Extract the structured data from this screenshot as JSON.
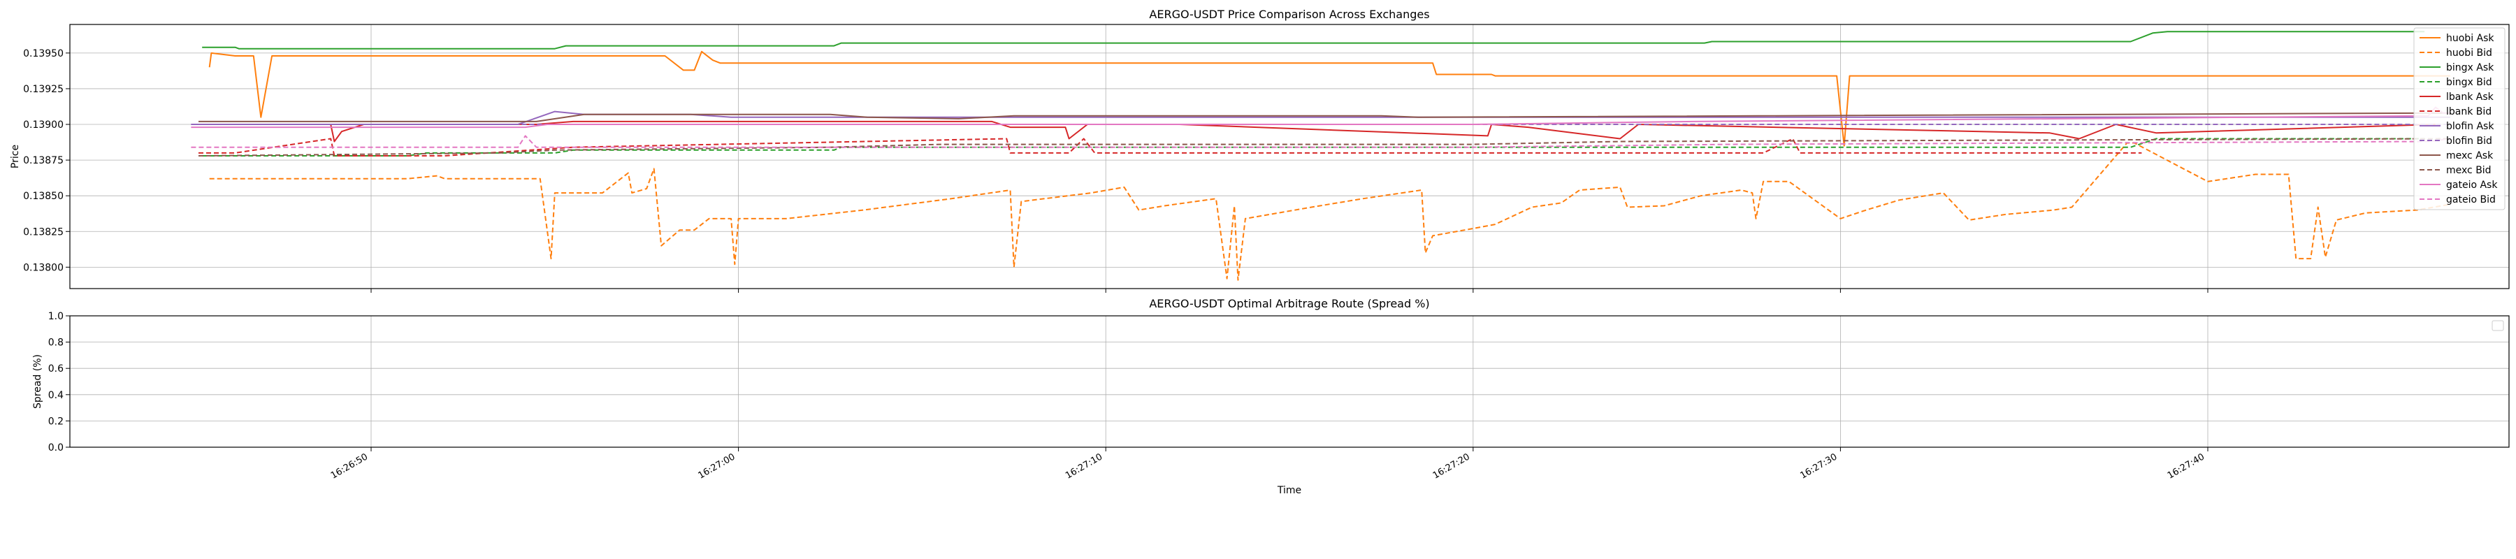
{
  "chart_data": [
    {
      "type": "line",
      "title": "AERGO-USDT Price Comparison Across Exchanges",
      "xlabel": "",
      "ylabel": "Price",
      "ylim": [
        0.13785,
        0.1397
      ],
      "xlim": [
        "16:26:41.8",
        "16:27:48.2"
      ],
      "grid": true,
      "legend_position": "upper-right",
      "y_ticks": [
        "0.13800",
        "0.13825",
        "0.13850",
        "0.13875",
        "0.13900",
        "0.13925",
        "0.13950"
      ],
      "y_tick_values": [
        0.138,
        0.13825,
        0.1385,
        0.13875,
        0.139,
        0.13925,
        0.1395
      ],
      "x_ticks": [
        "16:26:50",
        "16:27:00",
        "16:27:10",
        "16:27:20",
        "16:27:30",
        "16:27:40"
      ],
      "x_tick_values": [
        "16:26:50",
        "16:27:00",
        "16:27:10",
        "16:27:20",
        "16:27:30",
        "16:27:40"
      ],
      "series": [
        {
          "name": "huobi Ask",
          "color": "#ff7f0e",
          "dash": "solid",
          "points": [
            [
              "16:26:45.6",
              0.1394
            ],
            [
              "16:26:45.65",
              0.1395
            ],
            [
              "16:26:46.3",
              0.13948
            ],
            [
              "16:26:46.8",
              0.13948
            ],
            [
              "16:26:47.0",
              0.13905
            ],
            [
              "16:26:47.3",
              0.13948
            ],
            [
              "16:26:58.0",
              0.13948
            ],
            [
              "16:26:58.5",
              0.13938
            ],
            [
              "16:26:58.8",
              0.13938
            ],
            [
              "16:26:59.0",
              0.13951
            ],
            [
              "16:26:59.3",
              0.13945
            ],
            [
              "16:26:59.5",
              0.13943
            ],
            [
              "16:27:18.9",
              0.13943
            ],
            [
              "16:27:19.0",
              0.13935
            ],
            [
              "16:27:20.5",
              0.13935
            ],
            [
              "16:27:20.6",
              0.13934
            ],
            [
              "16:27:29.9",
              0.13934
            ],
            [
              "16:27:30.1",
              0.13885
            ],
            [
              "16:27:30.25",
              0.13934
            ],
            [
              "16:27:46.6",
              0.13934
            ]
          ]
        },
        {
          "name": "huobi Bid",
          "color": "#ff7f0e",
          "dash": "dashed",
          "points": [
            [
              "16:26:45.6",
              0.13862
            ],
            [
              "16:26:51.0",
              0.13862
            ],
            [
              "16:26:51.8",
              0.13864
            ],
            [
              "16:26:52.0",
              0.13862
            ],
            [
              "16:26:54.6",
              0.13862
            ],
            [
              "16:26:54.9",
              0.13806
            ],
            [
              "16:26:55.0",
              0.13852
            ],
            [
              "16:26:56.3",
              0.13852
            ],
            [
              "16:26:57.0",
              0.13866
            ],
            [
              "16:26:57.1",
              0.13852
            ],
            [
              "16:26:57.5",
              0.13855
            ],
            [
              "16:26:57.7",
              0.13869
            ],
            [
              "16:26:57.9",
              0.13815
            ],
            [
              "16:26:58.4",
              0.13826
            ],
            [
              "16:26:58.8",
              0.13826
            ],
            [
              "16:26:59.2",
              0.13834
            ],
            [
              "16:26:59.8",
              0.13834
            ],
            [
              "16:26:59.9",
              0.13802
            ],
            [
              "16:27:00.0",
              0.13834
            ],
            [
              "16:27:01.3",
              0.13834
            ],
            [
              "16:27:03.4",
              0.1384
            ],
            [
              "16:27:05.8",
              0.13848
            ],
            [
              "16:27:07.4",
              0.13854
            ],
            [
              "16:27:07.5",
              0.138
            ],
            [
              "16:27:07.7",
              0.13846
            ],
            [
              "16:27:09.6",
              0.13852
            ],
            [
              "16:27:10.5",
              0.13856
            ],
            [
              "16:27:10.9",
              0.1384
            ],
            [
              "16:27:11.6",
              0.13843
            ],
            [
              "16:27:13.0",
              0.13848
            ],
            [
              "16:27:13.3",
              0.13792
            ],
            [
              "16:27:13.5",
              0.13843
            ],
            [
              "16:27:13.6",
              0.13791
            ],
            [
              "16:27:13.8",
              0.13834
            ],
            [
              "16:27:15.6",
              0.13842
            ],
            [
              "16:27:17.0",
              0.13848
            ],
            [
              "16:27:18.6",
              0.13854
            ],
            [
              "16:27:18.7",
              0.1381
            ],
            [
              "16:27:18.9",
              0.13822
            ],
            [
              "16:27:20.2",
              0.13828
            ],
            [
              "16:27:20.6",
              0.1383
            ],
            [
              "16:27:21.6",
              0.13842
            ],
            [
              "16:27:22.4",
              0.13845
            ],
            [
              "16:27:22.9",
              0.13854
            ],
            [
              "16:27:24.0",
              0.13856
            ],
            [
              "16:27:24.2",
              0.13842
            ],
            [
              "16:27:25.2",
              0.13843
            ],
            [
              "16:27:26.2",
              0.1385
            ],
            [
              "16:27:27.3",
              0.13854
            ],
            [
              "16:27:27.6",
              0.13852
            ],
            [
              "16:27:27.7",
              0.13834
            ],
            [
              "16:27:27.9",
              0.1386
            ],
            [
              "16:27:28.6",
              0.1386
            ],
            [
              "16:27:30.0",
              0.13834
            ],
            [
              "16:27:30.7",
              0.1384
            ],
            [
              "16:27:31.6",
              0.13847
            ],
            [
              "16:27:32.8",
              0.13852
            ],
            [
              "16:27:33.5",
              0.13833
            ],
            [
              "16:27:34.5",
              0.13837
            ],
            [
              "16:27:35.8",
              0.1384
            ],
            [
              "16:27:36.3",
              0.13842
            ],
            [
              "16:27:37.8",
              0.13887
            ],
            [
              "16:27:38.0",
              0.13887
            ],
            [
              "16:27:40.0",
              0.1386
            ],
            [
              "16:27:41.3",
              0.13865
            ],
            [
              "16:27:42.2",
              0.13865
            ],
            [
              "16:27:42.4",
              0.13806
            ],
            [
              "16:27:42.8",
              0.13806
            ],
            [
              "16:27:43.0",
              0.13842
            ],
            [
              "16:27:43.2",
              0.13807
            ],
            [
              "16:27:43.5",
              0.13833
            ],
            [
              "16:27:44.3",
              0.13838
            ],
            [
              "16:27:45.7",
              0.1384
            ],
            [
              "16:27:46.6",
              0.13844
            ]
          ]
        },
        {
          "name": "bingx Ask",
          "color": "#2ca02c",
          "dash": "solid",
          "points": [
            [
              "16:26:45.4",
              0.13954
            ],
            [
              "16:26:46.3",
              0.13954
            ],
            [
              "16:26:46.4",
              0.13953
            ],
            [
              "16:26:55.0",
              0.13953
            ],
            [
              "16:26:55.3",
              0.13955
            ],
            [
              "16:27:02.6",
              0.13955
            ],
            [
              "16:27:02.8",
              0.13957
            ],
            [
              "16:27:26.3",
              0.13957
            ],
            [
              "16:27:26.5",
              0.13958
            ],
            [
              "16:27:37.9",
              0.13958
            ],
            [
              "16:27:38.5",
              0.13964
            ],
            [
              "16:27:38.9",
              0.13965
            ],
            [
              "16:27:45.9",
              0.13965
            ]
          ]
        },
        {
          "name": "bingx Bid",
          "color": "#2ca02c",
          "dash": "dashed",
          "points": [
            [
              "16:26:45.4",
              0.13878
            ],
            [
              "16:26:51.0",
              0.13878
            ],
            [
              "16:26:51.5",
              0.1388
            ],
            [
              "16:26:55.0",
              0.1388
            ],
            [
              "16:26:55.5",
              0.13882
            ],
            [
              "16:27:02.6",
              0.13882
            ],
            [
              "16:27:02.8",
              0.13884
            ],
            [
              "16:27:20.6",
              0.13884
            ],
            [
              "16:27:20.8",
              0.13884
            ],
            [
              "16:27:37.9",
              0.13884
            ],
            [
              "16:27:38.6",
              0.1389
            ],
            [
              "16:27:45.9",
              0.1389
            ]
          ]
        },
        {
          "name": "lbank Ask",
          "color": "#d62728",
          "dash": "solid",
          "points": [
            [
              "16:26:45.3",
              0.139
            ],
            [
              "16:26:48.9",
              0.139
            ],
            [
              "16:26:49.0",
              0.13888
            ],
            [
              "16:26:49.2",
              0.13895
            ],
            [
              "16:26:49.8",
              0.139
            ],
            [
              "16:26:54.5",
              0.139
            ],
            [
              "16:26:55.5",
              0.13902
            ],
            [
              "16:26:57.0",
              0.13902
            ],
            [
              "16:27:06.9",
              0.13902
            ],
            [
              "16:27:07.4",
              0.13898
            ],
            [
              "16:27:08.9",
              0.13898
            ],
            [
              "16:27:09.0",
              0.1389
            ],
            [
              "16:27:09.5",
              0.139
            ],
            [
              "16:27:12.0",
              0.139
            ],
            [
              "16:27:20.4",
              0.13892
            ],
            [
              "16:27:20.5",
              0.139
            ],
            [
              "16:27:21.5",
              0.13898
            ],
            [
              "16:27:24.0",
              0.1389
            ],
            [
              "16:27:24.5",
              0.139
            ],
            [
              "16:27:35.7",
              0.13894
            ],
            [
              "16:27:36.5",
              0.1389
            ],
            [
              "16:27:37.5",
              0.139
            ],
            [
              "16:27:38.6",
              0.13894
            ],
            [
              "16:27:46.2",
              0.139
            ]
          ]
        },
        {
          "name": "lbank Bid",
          "color": "#d62728",
          "dash": "dashed",
          "points": [
            [
              "16:26:45.3",
              0.1388
            ],
            [
              "16:26:46.3",
              0.1388
            ],
            [
              "16:26:48.9",
              0.1389
            ],
            [
              "16:26:49.0",
              0.13878
            ],
            [
              "16:26:52.0",
              0.13878
            ],
            [
              "16:26:55.5",
              0.13884
            ],
            [
              "16:27:07.3",
              0.1389
            ],
            [
              "16:27:07.4",
              0.1388
            ],
            [
              "16:27:09.0",
              0.1388
            ],
            [
              "16:27:09.4",
              0.1389
            ],
            [
              "16:27:09.7",
              0.1388
            ],
            [
              "16:27:27.9",
              0.1388
            ],
            [
              "16:27:28.7",
              0.1389
            ],
            [
              "16:27:28.9",
              0.1388
            ],
            [
              "16:27:38.2",
              0.1388
            ]
          ]
        },
        {
          "name": "blofin Ask",
          "color": "#9467bd",
          "dash": "solid",
          "points": [
            [
              "16:26:45.1",
              0.139
            ],
            [
              "16:26:54.0",
              0.139
            ],
            [
              "16:26:55.0",
              0.13909
            ],
            [
              "16:26:55.8",
              0.13907
            ],
            [
              "16:26:58.7",
              0.13907
            ],
            [
              "16:26:59.8",
              0.13905
            ],
            [
              "16:27:20.6",
              0.13905
            ],
            [
              "16:27:46.6",
              0.13905
            ]
          ]
        },
        {
          "name": "blofin Bid",
          "color": "#9467bd",
          "dash": "dashed",
          "points": [
            [
              "16:26:45.1",
              0.139
            ],
            [
              "16:26:59.8",
              0.139
            ],
            [
              "16:27:20.7",
              0.139
            ],
            [
              "16:27:46.6",
              0.139
            ]
          ]
        },
        {
          "name": "mexc Ask",
          "color": "#8c564b",
          "dash": "solid",
          "points": [
            [
              "16:26:45.3",
              0.13902
            ],
            [
              "16:26:46.3",
              0.13902
            ],
            [
              "16:26:54.5",
              0.13902
            ],
            [
              "16:26:55.8",
              0.13907
            ],
            [
              "16:27:02.5",
              0.13907
            ],
            [
              "16:27:03.5",
              0.13905
            ],
            [
              "16:27:06.0",
              0.13904
            ],
            [
              "16:27:07.5",
              0.13906
            ],
            [
              "16:27:17.5",
              0.13906
            ],
            [
              "16:27:18.5",
              0.13905
            ],
            [
              "16:27:46.6",
              0.13908
            ]
          ]
        },
        {
          "name": "mexc Bid",
          "color": "#8c564b",
          "dash": "dashed",
          "points": [
            [
              "16:26:45.3",
              0.13878
            ],
            [
              "16:26:53.5",
              0.1388
            ],
            [
              "16:26:55.0",
              0.13882
            ],
            [
              "16:27:02.5",
              0.13884
            ],
            [
              "16:27:05.5",
              0.13886
            ],
            [
              "16:27:20.0",
              0.13886
            ],
            [
              "16:27:24.0",
              0.13888
            ],
            [
              "16:27:46.6",
              0.1389
            ]
          ]
        },
        {
          "name": "gateio Ask",
          "color": "#e377c2",
          "dash": "solid",
          "points": [
            [
              "16:26:45.1",
              0.13898
            ],
            [
              "16:26:54.2",
              0.13898
            ],
            [
              "16:26:54.8",
              0.139
            ],
            [
              "16:26:55.0",
              0.139
            ],
            [
              "16:27:20.0",
              0.139
            ],
            [
              "16:27:26.0",
              0.13902
            ],
            [
              "16:27:46.0",
              0.13906
            ],
            [
              "16:27:46.2",
              0.13912
            ],
            [
              "16:27:46.4",
              0.13908
            ],
            [
              "16:27:46.6",
              0.13908
            ]
          ]
        },
        {
          "name": "gateio Bid",
          "color": "#e377c2",
          "dash": "dashed",
          "points": [
            [
              "16:26:45.1",
              0.13884
            ],
            [
              "16:26:54.0",
              0.13884
            ],
            [
              "16:26:54.2",
              0.13892
            ],
            [
              "16:26:54.5",
              0.13884
            ],
            [
              "16:27:20.0",
              0.13884
            ],
            [
              "16:27:27.0",
              0.13886
            ],
            [
              "16:27:46.0",
              0.13888
            ],
            [
              "16:27:46.6",
              0.1389
            ]
          ]
        }
      ]
    },
    {
      "type": "line",
      "title": "AERGO-USDT Optimal Arbitrage Route (Spread %)",
      "xlabel": "Time",
      "ylabel": "Spread (%)",
      "ylim": [
        0.0,
        1.0
      ],
      "xlim": [
        "16:26:41.8",
        "16:27:48.2"
      ],
      "grid": true,
      "legend_position": "upper-right",
      "y_ticks": [
        "0.0",
        "0.2",
        "0.4",
        "0.6",
        "0.8",
        "1.0"
      ],
      "y_tick_values": [
        0.0,
        0.2,
        0.4,
        0.6,
        0.8,
        1.0
      ],
      "x_ticks": [
        "16:26:50",
        "16:27:00",
        "16:27:10",
        "16:27:20",
        "16:27:30",
        "16:27:40"
      ],
      "x_tick_values": [
        "16:26:50",
        "16:27:00",
        "16:27:10",
        "16:27:20",
        "16:27:30",
        "16:27:40"
      ],
      "series": []
    }
  ]
}
